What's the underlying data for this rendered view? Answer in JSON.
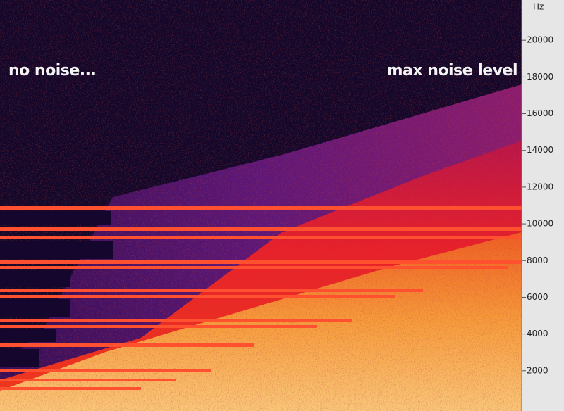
{
  "chart_data": {
    "type": "spectrogram",
    "y_label": "Hz",
    "annotations": [
      "no noise...",
      "max noise level"
    ],
    "ylim": [
      0,
      22000
    ],
    "yticks": [
      2000,
      4000,
      6000,
      8000,
      10000,
      12000,
      14000,
      16000,
      18000,
      20000
    ]
  }
}
